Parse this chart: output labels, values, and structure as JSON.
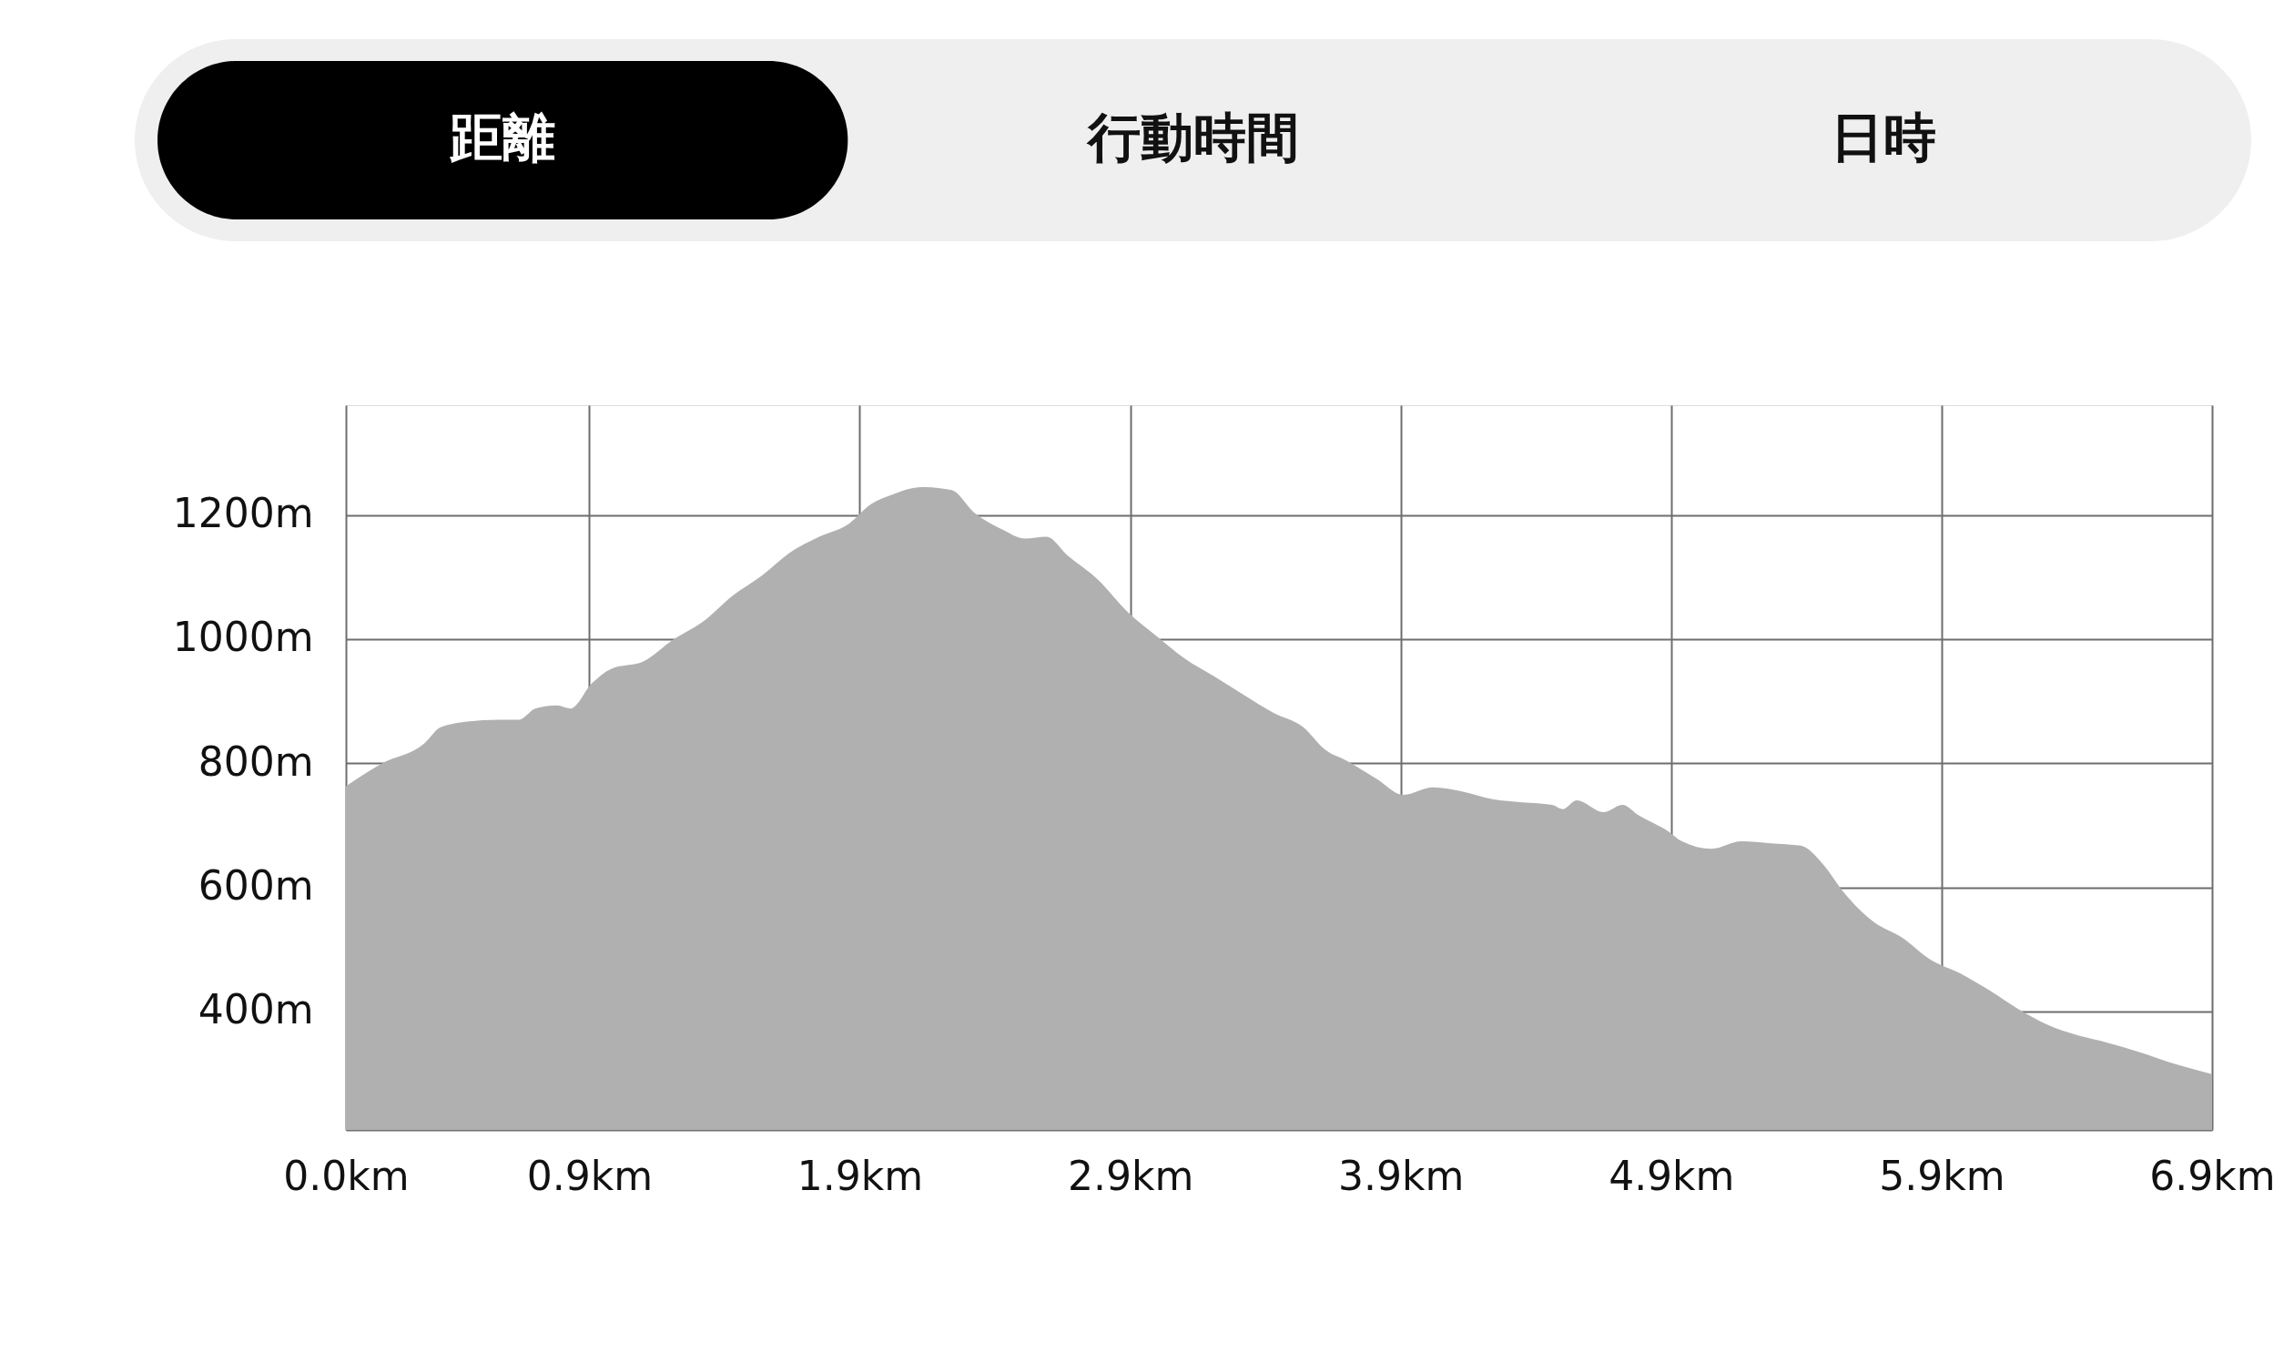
{
  "chart_data": {
    "type": "area",
    "annotations": [
      "距離",
      "行動時間",
      "日時"
    ],
    "x": [
      0,
      0.13,
      0.29,
      0.35,
      0.45,
      0.56,
      0.64,
      0.7,
      0.78,
      0.83,
      0.91,
      0.98,
      1.1,
      1.21,
      1.32,
      1.43,
      1.54,
      1.64,
      1.75,
      1.86,
      1.94,
      2.02,
      2.13,
      2.24,
      2.32,
      2.43,
      2.51,
      2.59,
      2.67,
      2.78,
      2.89,
      3.0,
      3.1,
      3.21,
      3.32,
      3.43,
      3.54,
      3.62,
      3.7,
      3.81,
      3.91,
      4.02,
      4.13,
      4.24,
      4.35,
      4.46,
      4.5,
      4.55,
      4.65,
      4.72,
      4.78,
      4.89,
      4.94,
      5.05,
      5.16,
      5.27,
      5.38,
      5.46,
      5.54,
      5.65,
      5.75,
      5.86,
      5.97,
      6.08,
      6.19,
      6.29,
      6.4,
      6.51,
      6.62,
      6.78,
      6.9
    ],
    "series": [
      {
        "color": "#b0b0b0",
        "values": [
          763,
          799,
          832,
          858,
          867,
          870,
          870,
          888,
          893,
          888,
          929,
          952,
          964,
          999,
          1028,
          1070,
          1103,
          1139,
          1165,
          1186,
          1217,
          1233,
          1245,
          1240,
          1205,
          1176,
          1162,
          1165,
          1134,
          1096,
          1044,
          1004,
          969,
          940,
          910,
          881,
          858,
          822,
          804,
          775,
          749,
          761,
          754,
          742,
          737,
          733,
          726,
          740,
          721,
          733,
          716,
          690,
          674,
          662,
          674,
          671,
          667,
          638,
          591,
          544,
          520,
          483,
          461,
          433,
          402,
          379,
          362,
          350,
          336,
          313,
          299
        ]
      }
    ],
    "xlim": [
      0,
      6.9
    ],
    "ylim": [
      209,
      1377
    ],
    "xticks": [
      {
        "value": 0,
        "label": "0.0km"
      },
      {
        "value": 0.9,
        "label": "0.9km"
      },
      {
        "value": 1.9,
        "label": "1.9km"
      },
      {
        "value": 2.9,
        "label": "2.9km"
      },
      {
        "value": 3.9,
        "label": "3.9km"
      },
      {
        "value": 4.9,
        "label": "4.9km"
      },
      {
        "value": 5.9,
        "label": "5.9km"
      },
      {
        "value": 6.9,
        "label": "6.9km"
      }
    ],
    "yticks": [
      {
        "value": 400,
        "label": "400m"
      },
      {
        "value": 600,
        "label": "600m"
      },
      {
        "value": 800,
        "label": "800m"
      },
      {
        "value": 1000,
        "label": "1000m"
      },
      {
        "value": 1200,
        "label": "1200m"
      }
    ],
    "grid": true
  }
}
